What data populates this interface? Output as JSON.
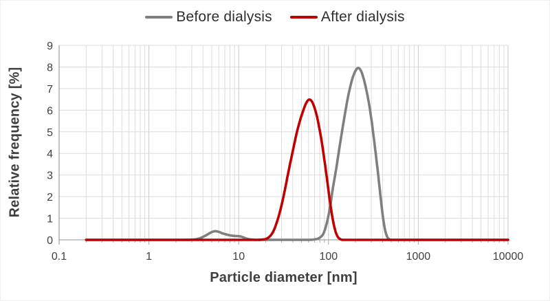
{
  "colors": {
    "background": "#ffffff",
    "grid_minor": "#dcdcdc",
    "grid_major": "#c9c9c9",
    "axis": "#a6a6a6",
    "tick_label": "#404040",
    "axis_title": "#3f3f3f",
    "legend_text": "#2e2e2e"
  },
  "chart_data": {
    "type": "line",
    "title": "",
    "xlabel": "Particle diameter [nm]",
    "ylabel": "Relative frequency [%]",
    "x_scale": "log",
    "xlim": [
      0.1,
      10000
    ],
    "ylim": [
      0,
      9
    ],
    "x_ticks": [
      "0.1",
      "1",
      "10",
      "100",
      "1000",
      "10000"
    ],
    "y_ticks": [
      0,
      1,
      2,
      3,
      4,
      5,
      6,
      7,
      8,
      9
    ],
    "grid": true,
    "legend_position": "top-center",
    "series": [
      {
        "name": "Before dialysis",
        "color": "#7f7f7f",
        "points": [
          [
            0.2,
            0
          ],
          [
            0.5,
            0
          ],
          [
            1,
            0
          ],
          [
            2,
            0
          ],
          [
            3,
            0.01
          ],
          [
            3.6,
            0.06
          ],
          [
            4.2,
            0.18
          ],
          [
            4.8,
            0.32
          ],
          [
            5.4,
            0.4
          ],
          [
            6,
            0.37
          ],
          [
            6.6,
            0.3
          ],
          [
            7.4,
            0.24
          ],
          [
            8.2,
            0.2
          ],
          [
            9,
            0.18
          ],
          [
            10,
            0.17
          ],
          [
            11,
            0.13
          ],
          [
            12,
            0.07
          ],
          [
            13,
            0.03
          ],
          [
            14.5,
            0.01
          ],
          [
            16,
            0
          ],
          [
            25,
            0
          ],
          [
            40,
            0
          ],
          [
            60,
            0
          ],
          [
            72,
            0.03
          ],
          [
            80,
            0.1
          ],
          [
            88,
            0.3
          ],
          [
            96,
            0.8
          ],
          [
            104,
            1.5
          ],
          [
            112,
            2.4
          ],
          [
            122,
            3.3
          ],
          [
            134,
            4.4
          ],
          [
            148,
            5.5
          ],
          [
            163,
            6.5
          ],
          [
            180,
            7.3
          ],
          [
            196,
            7.75
          ],
          [
            212,
            7.95
          ],
          [
            228,
            7.85
          ],
          [
            245,
            7.5
          ],
          [
            262,
            7.0
          ],
          [
            280,
            6.4
          ],
          [
            300,
            5.6
          ],
          [
            320,
            4.7
          ],
          [
            340,
            3.8
          ],
          [
            360,
            2.9
          ],
          [
            380,
            2.0
          ],
          [
            400,
            1.2
          ],
          [
            420,
            0.6
          ],
          [
            440,
            0.25
          ],
          [
            460,
            0.08
          ],
          [
            480,
            0.02
          ],
          [
            500,
            0
          ],
          [
            700,
            0
          ],
          [
            1000,
            0
          ],
          [
            3000,
            0
          ],
          [
            10000,
            0
          ]
        ]
      },
      {
        "name": "After dialysis",
        "color": "#c00000",
        "points": [
          [
            0.2,
            0
          ],
          [
            0.5,
            0
          ],
          [
            1,
            0
          ],
          [
            2,
            0
          ],
          [
            4,
            0
          ],
          [
            7,
            0
          ],
          [
            10,
            0
          ],
          [
            14,
            0
          ],
          [
            18,
            0.01
          ],
          [
            21,
            0.08
          ],
          [
            24,
            0.35
          ],
          [
            27,
            0.9
          ],
          [
            30,
            1.6
          ],
          [
            33,
            2.4
          ],
          [
            36,
            3.2
          ],
          [
            40,
            4.1
          ],
          [
            44,
            4.9
          ],
          [
            48,
            5.5
          ],
          [
            52,
            5.95
          ],
          [
            56,
            6.3
          ],
          [
            60,
            6.48
          ],
          [
            64,
            6.45
          ],
          [
            68,
            6.25
          ],
          [
            73,
            5.85
          ],
          [
            78,
            5.3
          ],
          [
            84,
            4.55
          ],
          [
            90,
            3.7
          ],
          [
            96,
            2.85
          ],
          [
            102,
            2.0
          ],
          [
            108,
            1.3
          ],
          [
            114,
            0.75
          ],
          [
            120,
            0.38
          ],
          [
            126,
            0.16
          ],
          [
            133,
            0.05
          ],
          [
            140,
            0.01
          ],
          [
            148,
            0
          ],
          [
            200,
            0
          ],
          [
            400,
            0
          ],
          [
            1000,
            0
          ],
          [
            3000,
            0
          ],
          [
            10000,
            0
          ]
        ]
      }
    ]
  }
}
